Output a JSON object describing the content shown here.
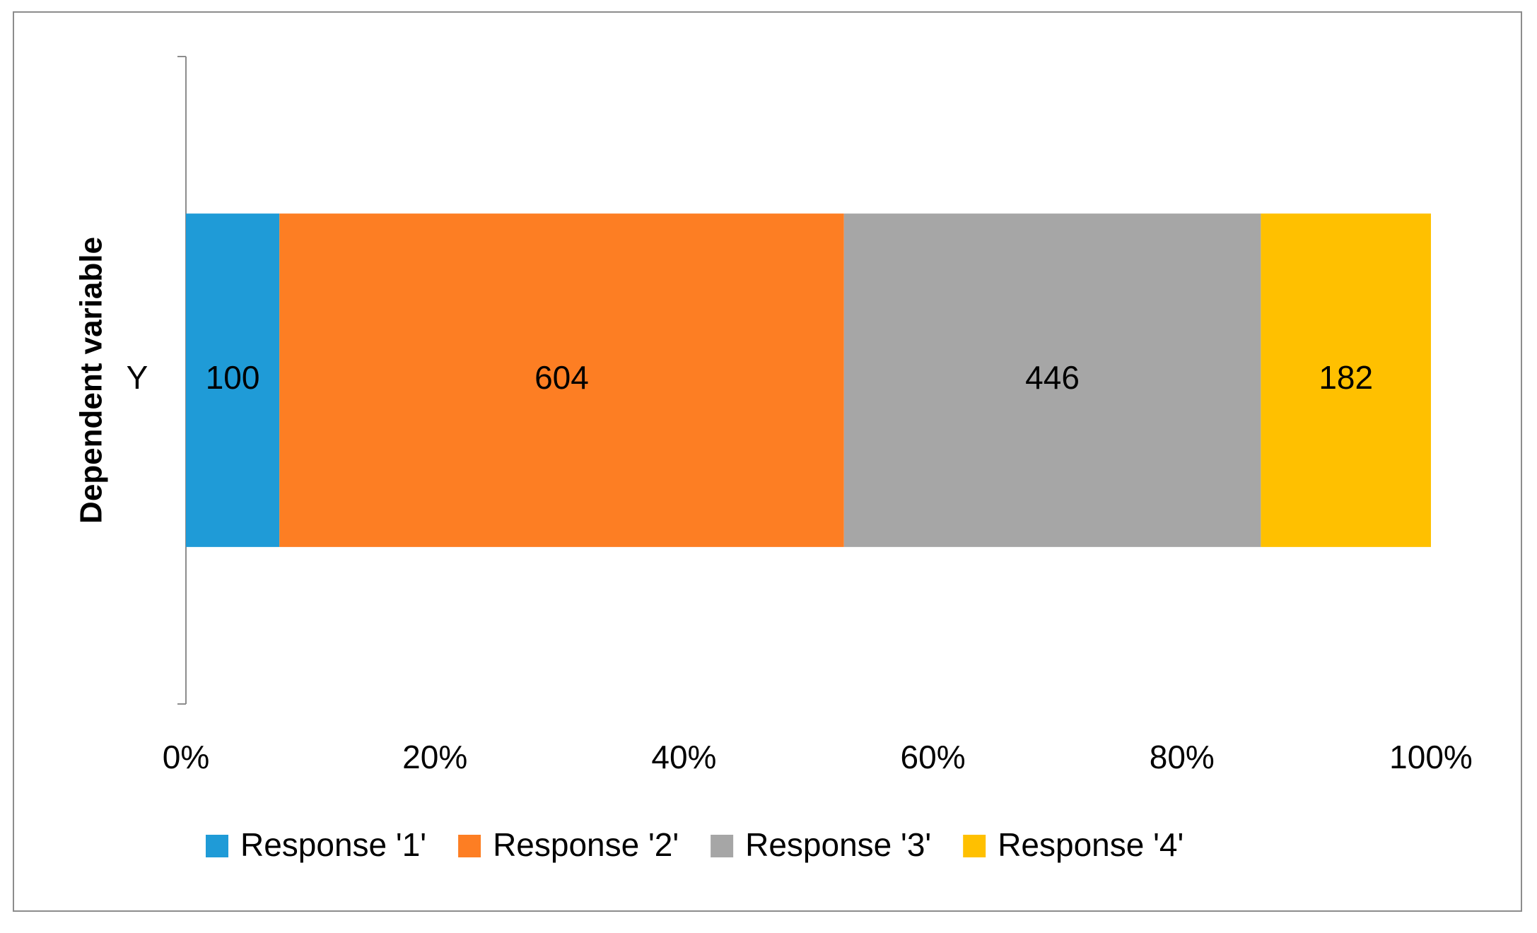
{
  "chart_data": {
    "type": "bar",
    "orientation": "horizontal",
    "stacking": "percent",
    "y_axis_title": "Dependent variable",
    "categories": [
      "Y"
    ],
    "series": [
      {
        "name": "Response '1'",
        "color": "#1f9bd7",
        "values": [
          100
        ]
      },
      {
        "name": "Response '2'",
        "color": "#fd7e23",
        "values": [
          604
        ]
      },
      {
        "name": "Response '3'",
        "color": "#a6a6a6",
        "values": [
          446
        ]
      },
      {
        "name": "Response '4'",
        "color": "#ffc000",
        "values": [
          182
        ]
      }
    ],
    "xlim": [
      0,
      100
    ],
    "xticks": [
      {
        "value": 0,
        "label": "0%"
      },
      {
        "value": 20,
        "label": "20%"
      },
      {
        "value": 40,
        "label": "40%"
      },
      {
        "value": 60,
        "label": "60%"
      },
      {
        "value": 80,
        "label": "80%"
      },
      {
        "value": 100,
        "label": "100%"
      }
    ],
    "grid": false,
    "legend": "bottom"
  }
}
